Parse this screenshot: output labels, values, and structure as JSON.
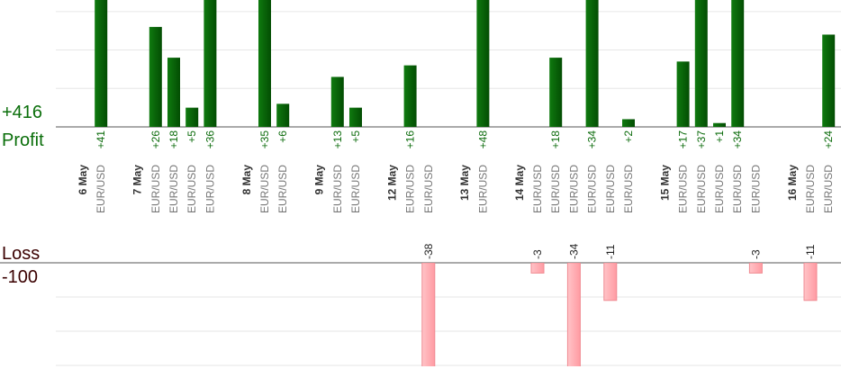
{
  "chart_data": {
    "type": "bar",
    "profit_total_label": "+416",
    "profit_label": "Profit",
    "loss_label": "Loss",
    "loss_total_label": "-100",
    "profit_color": "#0b6b0b",
    "loss_color": "#ffb3b8",
    "ylim": [
      0,
      33
    ],
    "ygrid": [
      10,
      20,
      30
    ],
    "y2lim": [
      0,
      -30
    ],
    "y2grid": [
      -10,
      -20,
      -30
    ],
    "groups": [
      {
        "label": "6 May",
        "categories": [
          "EUR/USD"
        ],
        "values": [
          41
        ],
        "value_labels": [
          "+41"
        ]
      },
      {
        "label": "7 May",
        "categories": [
          "EUR/USD",
          "EUR/USD",
          "EUR/USD",
          "EUR/USD"
        ],
        "values": [
          26,
          18,
          5,
          36
        ],
        "value_labels": [
          "+26",
          "+18",
          "+5",
          "+36"
        ]
      },
      {
        "label": "8 May",
        "categories": [
          "EUR/USD",
          "EUR/USD"
        ],
        "values": [
          35,
          6
        ],
        "value_labels": [
          "+35",
          "+6"
        ]
      },
      {
        "label": "9 May",
        "categories": [
          "EUR/USD",
          "EUR/USD"
        ],
        "values": [
          13,
          5
        ],
        "value_labels": [
          "+13",
          "+5"
        ]
      },
      {
        "label": "12 May",
        "categories": [
          "EUR/USD",
          "EUR/USD"
        ],
        "values": [
          16,
          -38
        ],
        "value_labels": [
          "+16",
          "-38"
        ]
      },
      {
        "label": "13 May",
        "categories": [
          "EUR/USD"
        ],
        "values": [
          48
        ],
        "value_labels": [
          "+48"
        ]
      },
      {
        "label": "14 May",
        "categories": [
          "EUR/USD",
          "EUR/USD",
          "EUR/USD",
          "EUR/USD",
          "EUR/USD",
          "EUR/USD"
        ],
        "values": [
          -3,
          18,
          -34,
          34,
          -11,
          2
        ],
        "value_labels": [
          "-3",
          "+18",
          "-34",
          "+34",
          "-11",
          "+2"
        ]
      },
      {
        "label": "15 May",
        "categories": [
          "EUR/USD",
          "EUR/USD",
          "EUR/USD",
          "EUR/USD",
          "EUR/USD"
        ],
        "values": [
          17,
          37,
          1,
          34,
          -3
        ],
        "value_labels": [
          "+17",
          "+37",
          "+1",
          "+34",
          "-3"
        ]
      },
      {
        "label": "16 May",
        "categories": [
          "EUR/USD",
          "EUR/USD"
        ],
        "values": [
          -11,
          24
        ],
        "value_labels": [
          "-11",
          "+24"
        ]
      }
    ]
  }
}
